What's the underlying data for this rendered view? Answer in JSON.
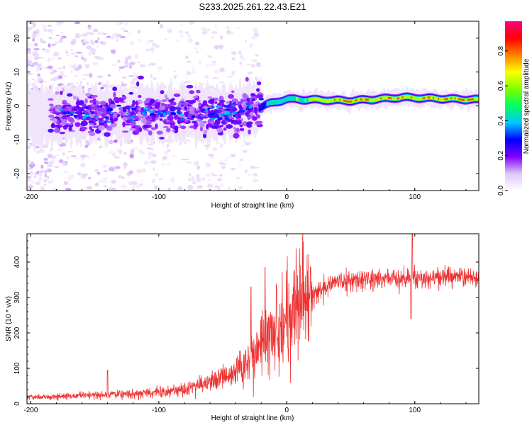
{
  "title": "S233.2025.261.22.43.E21",
  "chart_data": [
    {
      "type": "heatmap",
      "name": "spectrogram",
      "xlabel": "Height of straight line (km)",
      "ylabel": "Frequency (Hz)",
      "xlim": [
        -203,
        150
      ],
      "ylim": [
        -25,
        25
      ],
      "xticks": [
        -200,
        -100,
        0,
        100
      ],
      "yticks": [
        -20,
        -10,
        0,
        10,
        20
      ],
      "xtick_labels": [
        "-200",
        "-100",
        "0",
        "100"
      ],
      "ytick_labels": [
        "-20",
        "-10",
        "0",
        "10",
        "20"
      ],
      "colorbar": {
        "label": "Normalized spectral amplitude",
        "range": [
          0,
          0.97
        ],
        "ticks": [
          0.0,
          0.2,
          0.4,
          0.6,
          0.8
        ],
        "tick_labels": [
          "0.0",
          "0.2",
          "0.4",
          "0.6",
          "0.8"
        ],
        "colors": [
          "#ffffff",
          "#e0c8f8",
          "#8000ff",
          "#0000ff",
          "#00c8ff",
          "#00ff60",
          "#80ff00",
          "#ffff00",
          "#ff8000",
          "#ff0000",
          "#ff0080"
        ]
      },
      "ridge": [
        {
          "x": -190,
          "f": -3.0,
          "amp": 0.25
        },
        {
          "x": -150,
          "f": -2.5,
          "amp": 0.3
        },
        {
          "x": -100,
          "f": -2.0,
          "amp": 0.35
        },
        {
          "x": -60,
          "f": -2.5,
          "amp": 0.3
        },
        {
          "x": -25,
          "f": -1.0,
          "amp": 0.3
        },
        {
          "x": -15,
          "f": 0.5,
          "amp": 0.45
        },
        {
          "x": 0,
          "f": 2.0,
          "amp": 0.55
        },
        {
          "x": 50,
          "f": 1.5,
          "amp": 0.85
        },
        {
          "x": 90,
          "f": 2.5,
          "amp": 0.8
        },
        {
          "x": 150,
          "f": 1.8,
          "amp": 0.85
        }
      ]
    },
    {
      "type": "line",
      "name": "snr",
      "xlabel": "Height of straight line (km)",
      "ylabel": "SNR (10 * v/v)",
      "xlim": [
        -203,
        150
      ],
      "ylim": [
        0,
        480
      ],
      "xticks": [
        -200,
        -100,
        0,
        100
      ],
      "yticks": [
        0,
        100,
        200,
        300,
        400
      ],
      "xtick_labels": [
        "-200",
        "-100",
        "0",
        "100"
      ],
      "ytick_labels": [
        "0",
        "100",
        "200",
        "300",
        "400"
      ],
      "color": "#ee3333",
      "trend": {
        "x": [
          -203,
          -180,
          -150,
          -120,
          -100,
          -80,
          -60,
          -45,
          -35,
          -25,
          -18,
          -10,
          -5,
          0,
          5,
          10,
          15,
          25,
          35,
          50,
          70,
          90,
          110,
          130,
          150
        ],
        "y": [
          18,
          20,
          25,
          28,
          32,
          42,
          60,
          80,
          105,
          130,
          175,
          200,
          215,
          230,
          245,
          260,
          285,
          320,
          340,
          350,
          352,
          355,
          355,
          358,
          358
        ]
      },
      "spikes": [
        {
          "x": -140,
          "y": 95
        },
        {
          "x": -17,
          "y": 385
        },
        {
          "x": -28,
          "y": 330
        },
        {
          "x": -8,
          "y": 330
        },
        {
          "x": 98,
          "y": 480
        },
        {
          "x": 97,
          "y": 240
        }
      ]
    }
  ]
}
